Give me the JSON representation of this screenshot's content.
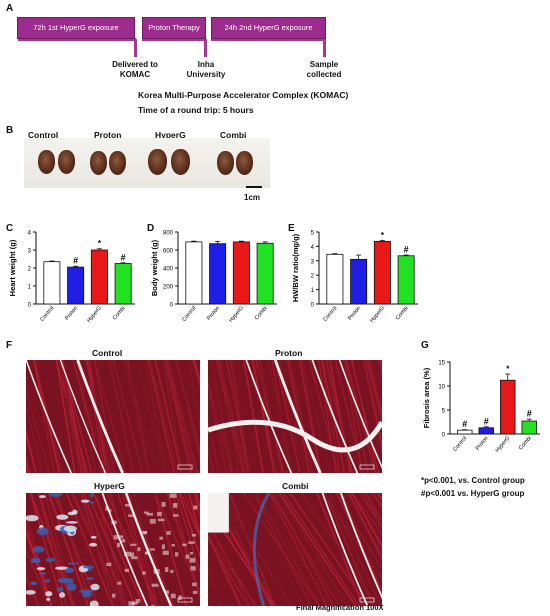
{
  "panel_letters": {
    "a": "A",
    "b": "B",
    "c": "C",
    "d": "D",
    "e": "E",
    "f": "F",
    "g": "G"
  },
  "timeline": {
    "box1": "72h 1st HyperG exposure",
    "box2": "Proton Therapy",
    "box3": "24h 2nd HyperG exposure",
    "label1": "Delivered to KOMAC",
    "label2": "Inha University",
    "label3": "Sample collected",
    "note1": "Korea Multi-Purpose Accelerator Complex (KOMAC)",
    "note2": "Time of a round trip: 5 hours"
  },
  "groups": [
    "Control",
    "Proton",
    "HyperG",
    "Combi"
  ],
  "scale_label": "1cm",
  "colors": {
    "control": "#ffffff",
    "proton": "#1e1ee6",
    "hyperg": "#e81818",
    "combi": "#22e022",
    "tissue": "#8b1a2a"
  },
  "chart_data": [
    {
      "type": "bar",
      "categories": [
        "Control",
        "Proton",
        "HyperG",
        "Combi"
      ],
      "values": [
        2.35,
        2.05,
        3.0,
        2.25
      ],
      "errors": [
        0.04,
        0.05,
        0.07,
        0.04
      ],
      "ylabel": "Heart weight (g)",
      "ylim": [
        0,
        4
      ],
      "yticks": [
        "0",
        "1",
        "2",
        "3",
        "4"
      ],
      "markers": [
        "",
        "#",
        "*",
        "#"
      ]
    },
    {
      "type": "bar",
      "categories": [
        "Control",
        "Proton",
        "HyperG",
        "Combi"
      ],
      "values": [
        690,
        670,
        690,
        675
      ],
      "errors": [
        8,
        25,
        8,
        15
      ],
      "ylabel": "Body weight (g)",
      "ylim": [
        0,
        800
      ],
      "yticks": [
        "0",
        "200",
        "400",
        "600",
        "800"
      ],
      "markers": [
        "",
        "",
        "",
        ""
      ]
    },
    {
      "type": "bar",
      "categories": [
        "Control",
        "Proton",
        "HyperG",
        "Combi"
      ],
      "values": [
        3.45,
        3.1,
        4.35,
        3.35
      ],
      "errors": [
        0.05,
        0.3,
        0.07,
        0.05
      ],
      "ylabel": "HW/BW ratio(mg/g)",
      "ylim": [
        0,
        5
      ],
      "yticks": [
        "0",
        "1",
        "2",
        "3",
        "4",
        "5"
      ],
      "markers": [
        "",
        "",
        "*",
        "#"
      ]
    },
    {
      "type": "bar",
      "categories": [
        "Control",
        "Proton",
        "HyperG",
        "Combi"
      ],
      "values": [
        0.8,
        1.3,
        11.2,
        2.7
      ],
      "errors": [
        0.1,
        0.2,
        1.3,
        0.4
      ],
      "ylabel": "Fibrosis area (%)",
      "ylim": [
        0,
        15
      ],
      "yticks": [
        "0",
        "5",
        "10",
        "15"
      ],
      "markers": [
        "#",
        "#",
        "*",
        "#"
      ]
    }
  ],
  "micro_titles": [
    "Control",
    "Proton",
    "HyperG",
    "Combi"
  ],
  "legend": {
    "line1": "*p<0.001, vs. Control group",
    "line2": "#p<0.001 vs. HyperG group"
  },
  "final_mag": "Final Magnification 100X"
}
